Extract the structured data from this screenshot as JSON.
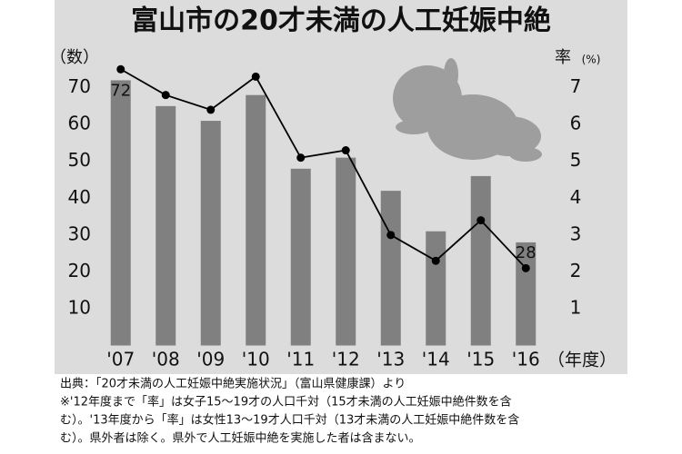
{
  "chart_data": {
    "type": "bar-line",
    "title": "富山市の20才未満の人工妊娠中絶",
    "y_label": "（数）",
    "y2_label": "率",
    "y2_unit": "(%)",
    "x_label": "（年度）",
    "categories": [
      "'07",
      "'08",
      "'09",
      "'10",
      "'11",
      "'12",
      "'13",
      "'14",
      "'15",
      "'16"
    ],
    "series": [
      {
        "type": "bar",
        "color": "#808080",
        "values": [
          72,
          65,
          61,
          68,
          48,
          51,
          42,
          31,
          46,
          28
        ],
        "value_labels": [
          "72",
          null,
          null,
          null,
          null,
          null,
          null,
          null,
          null,
          "28"
        ]
      },
      {
        "type": "line",
        "axis": "y2",
        "color": "#000000",
        "values": [
          7.5,
          6.8,
          6.4,
          7.3,
          5.1,
          5.3,
          3.0,
          2.3,
          3.4,
          2.1
        ]
      }
    ],
    "ylim": [
      0,
      80
    ],
    "yticks": [
      10,
      20,
      30,
      40,
      50,
      60,
      70
    ],
    "y2lim": [
      0,
      8
    ],
    "y2ticks": [
      1,
      2,
      3,
      4,
      5,
      6,
      7
    ],
    "grid": false,
    "notes": [
      "出典：「20才未満の人工妊娠中絶実施状況」（富山県健康課）より",
      "※'12年度まで「率」は女子15～19才の人口千対（15才未満の人工妊娠中絶件数を含",
      "む）。'13年度から「率」は女性13～19才人口千対（13才未満の人工妊娠中絶件数を含",
      "む）。県外者は除く。県外で人工妊娠中絶を実施した者は含まない。"
    ]
  }
}
